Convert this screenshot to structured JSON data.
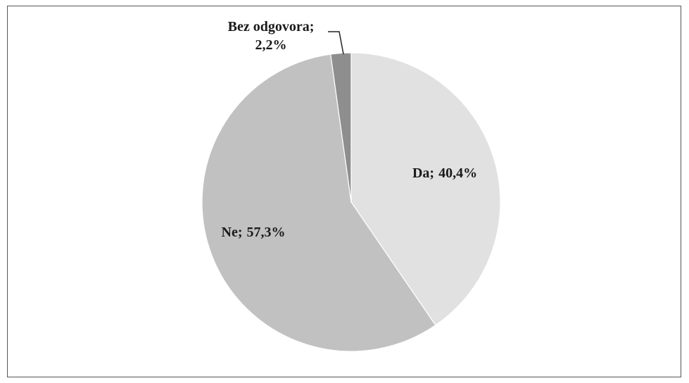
{
  "chart_data": {
    "type": "pie",
    "categories": [
      "Da",
      "Ne",
      "Bez odgovora"
    ],
    "values": [
      40.4,
      57.3,
      2.2
    ],
    "value_labels": [
      "40,4%",
      "57,3%",
      "2,2%"
    ],
    "separator": ";",
    "colors": [
      "#e1e1e1",
      "#c1c1c1",
      "#8e8e8e"
    ]
  }
}
